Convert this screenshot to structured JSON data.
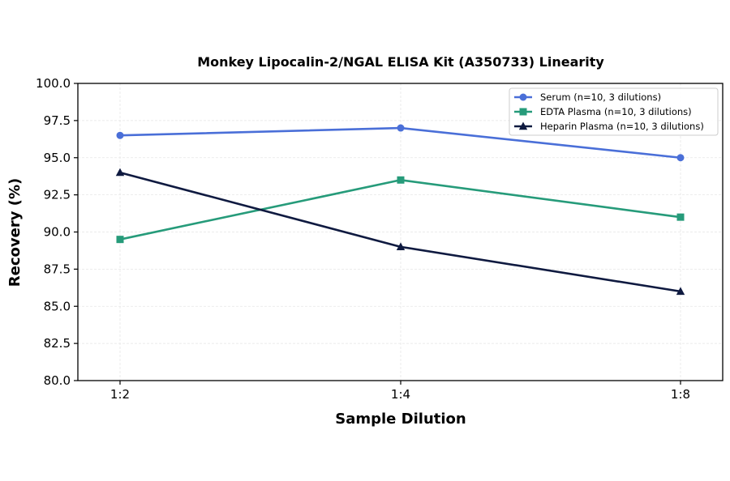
{
  "chart_data": {
    "type": "line",
    "title": "Monkey Lipocalin-2/NGAL ELISA Kit (A350733) Linearity",
    "xlabel": "Sample Dilution",
    "ylabel": "Recovery (%)",
    "categories": [
      "1:2",
      "1:4",
      "1:8"
    ],
    "ylim": [
      80.0,
      100.0
    ],
    "yticks": [
      "80.0",
      "82.5",
      "85.0",
      "87.5",
      "90.0",
      "92.5",
      "95.0",
      "97.5",
      "100.0"
    ],
    "grid": true,
    "legend_position": "top-right",
    "series": [
      {
        "name": "Serum (n=10, 3 dilutions)",
        "values": [
          96.5,
          97.0,
          95.0
        ],
        "color": "#4a6fd8",
        "marker": "circle"
      },
      {
        "name": "EDTA Plasma (n=10, 3 dilutions)",
        "values": [
          89.5,
          93.5,
          91.0
        ],
        "color": "#269b7a",
        "marker": "square"
      },
      {
        "name": "Heparin Plasma (n=10, 3 dilutions)",
        "values": [
          94.0,
          89.0,
          86.0
        ],
        "color": "#0f1a40",
        "marker": "triangle"
      }
    ]
  }
}
